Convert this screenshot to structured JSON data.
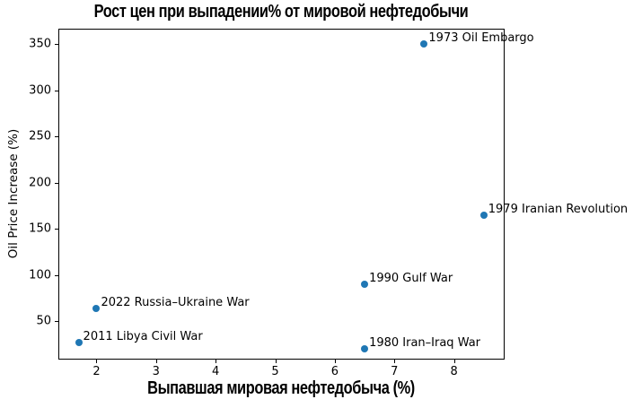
{
  "chart_data": {
    "type": "scatter",
    "title": "Рост цен при выпадении% от мировой нефтедобычи",
    "xlabel": "Выпавшая мировая нефтедобыча (%)",
    "ylabel": "Oil Price Increase (%)",
    "xlim": [
      1.36,
      8.85
    ],
    "ylim": [
      8.4,
      366.7
    ],
    "x_ticks": [
      2,
      3,
      4,
      5,
      6,
      7,
      8
    ],
    "y_ticks": [
      50,
      100,
      150,
      200,
      250,
      300,
      350
    ],
    "grid": false,
    "legend": null,
    "marker_color": "#1f77b4",
    "axis_color": "#000000",
    "background_color": "#ffffff",
    "points": [
      {
        "label": "1973 Oil Embargo",
        "x": 7.5,
        "y": 350
      },
      {
        "label": "1979 Iranian Revolution",
        "x": 8.5,
        "y": 165
      },
      {
        "label": "1990 Gulf War",
        "x": 6.5,
        "y": 90
      },
      {
        "label": "2022 Russia–Ukraine War",
        "x": 2.0,
        "y": 64
      },
      {
        "label": "2011 Libya Civil War",
        "x": 1.7,
        "y": 27
      },
      {
        "label": "1980 Iran–Iraq War",
        "x": 6.5,
        "y": 20
      }
    ]
  }
}
